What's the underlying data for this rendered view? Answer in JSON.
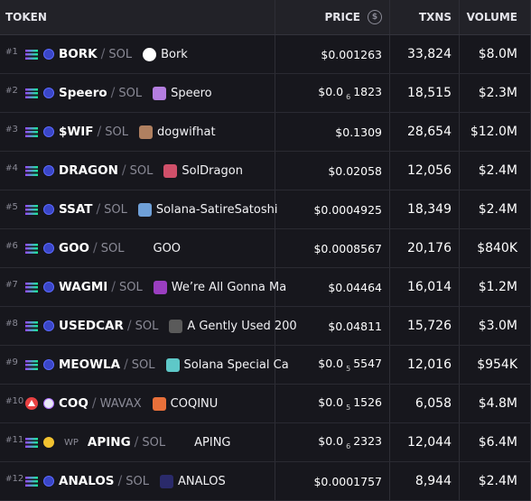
{
  "header": {
    "token": "TOKEN",
    "price": "PRICE",
    "price_icon": "$",
    "txns": "TXNS",
    "volume": "VOLUME"
  },
  "rows": [
    {
      "rank": "1",
      "symbol": "BORK",
      "quote": "SOL",
      "name": "Bork",
      "price": "$0.001263",
      "txns": "33,824",
      "volume": "$8.0M",
      "chain": "solana",
      "logo_color": "#ffffff"
    },
    {
      "rank": "2",
      "symbol": "Speero",
      "quote": "SOL",
      "name": "Speero",
      "price_prefix": "$0.0",
      "price_zeros": "6",
      "price_digits": "1823",
      "txns": "18,515",
      "volume": "$2.3M",
      "chain": "solana",
      "logo_color": "#b47ee0"
    },
    {
      "rank": "3",
      "symbol": "$WIF",
      "quote": "SOL",
      "name": "dogwifhat",
      "price": "$0.1309",
      "txns": "28,654",
      "volume": "$12.0M",
      "chain": "solana",
      "logo_color": "#b08060"
    },
    {
      "rank": "4",
      "symbol": "DRAGON",
      "quote": "SOL",
      "name": "SolDragon",
      "price": "$0.02058",
      "txns": "12,056",
      "volume": "$2.4M",
      "chain": "solana",
      "logo_color": "#d0506a"
    },
    {
      "rank": "5",
      "symbol": "SSAT",
      "quote": "SOL",
      "name": "Solana-SatireSatoshi",
      "price": "$0.0004925",
      "txns": "18,349",
      "volume": "$2.4M",
      "chain": "solana",
      "logo_color": "#6fa0d8"
    },
    {
      "rank": "6",
      "symbol": "GOO",
      "quote": "SOL",
      "name": "GOO",
      "price": "$0.0008567",
      "txns": "20,176",
      "volume": "$840K",
      "chain": "solana",
      "logo_color": ""
    },
    {
      "rank": "7",
      "symbol": "WAGMI",
      "quote": "SOL",
      "name": "We’re All Gonna Ma",
      "price": "$0.04464",
      "txns": "16,014",
      "volume": "$1.2M",
      "chain": "solana",
      "logo_color": "#9a3ec0"
    },
    {
      "rank": "8",
      "symbol": "USEDCAR",
      "quote": "SOL",
      "name": "A Gently Used 200",
      "price": "$0.04811",
      "txns": "15,726",
      "volume": "$3.0M",
      "chain": "solana",
      "logo_color": "#5a5a5a"
    },
    {
      "rank": "9",
      "symbol": "MEOWLA",
      "quote": "SOL",
      "name": "Solana Special Ca",
      "price_prefix": "$0.0",
      "price_zeros": "5",
      "price_digits": "5547",
      "txns": "12,016",
      "volume": "$954K",
      "chain": "solana",
      "logo_color": "#5ec8c8"
    },
    {
      "rank": "10",
      "symbol": "COQ",
      "quote": "WAVAX",
      "name": "COQINU",
      "price_prefix": "$0.0",
      "price_zeros": "5",
      "price_digits": "1526",
      "txns": "6,058",
      "volume": "$4.8M",
      "chain": "avalanche",
      "logo_color": "#e8703a"
    },
    {
      "rank": "11",
      "symbol": "APING",
      "quote": "SOL",
      "name": "APING",
      "price_prefix": "$0.0",
      "price_zeros": "6",
      "price_digits": "2323",
      "txns": "12,044",
      "volume": "$6.4M",
      "chain": "solana",
      "dex_label": "WP",
      "logo_color": ""
    },
    {
      "rank": "12",
      "symbol": "ANALOS",
      "quote": "SOL",
      "name": "ANALOS",
      "price": "$0.0001757",
      "txns": "8,944",
      "volume": "$2.4M",
      "chain": "solana",
      "logo_color": "#2a2a6a"
    }
  ]
}
